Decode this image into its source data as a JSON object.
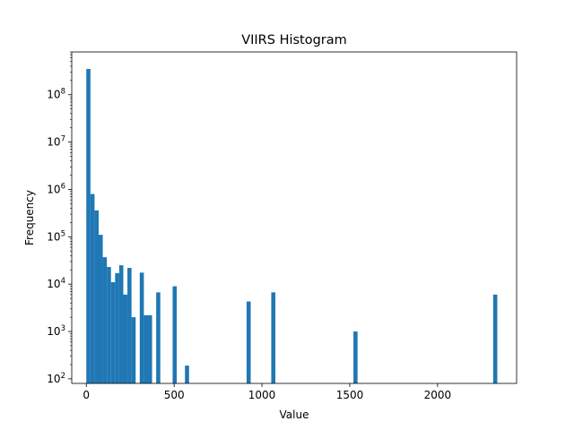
{
  "chart_data": {
    "type": "bar",
    "title": "VIIRS Histogram",
    "xlabel": "Value",
    "ylabel": "Frequency",
    "xlim": [
      -83,
      2450
    ],
    "ylim": [
      80,
      800000000
    ],
    "yscale": "log",
    "grid": false,
    "bar_color": "#1f77b4",
    "x_ticks": [
      {
        "value": 0,
        "label": "0"
      },
      {
        "value": 500,
        "label": "500"
      },
      {
        "value": 1000,
        "label": "1000"
      },
      {
        "value": 1500,
        "label": "1500"
      },
      {
        "value": 2000,
        "label": "2000"
      }
    ],
    "y_ticks": [
      {
        "value": 100,
        "base": "10",
        "exp": "2"
      },
      {
        "value": 1000,
        "base": "10",
        "exp": "3"
      },
      {
        "value": 10000,
        "base": "10",
        "exp": "4"
      },
      {
        "value": 100000,
        "base": "10",
        "exp": "5"
      },
      {
        "value": 1000000,
        "base": "10",
        "exp": "6"
      },
      {
        "value": 10000000,
        "base": "10",
        "exp": "7"
      },
      {
        "value": 100000000,
        "base": "10",
        "exp": "8"
      }
    ],
    "bin_width": 23.4,
    "bins": [
      {
        "x": 0,
        "count": 350000000
      },
      {
        "x": 23.4,
        "count": 800000
      },
      {
        "x": 46.8,
        "count": 360000
      },
      {
        "x": 70.2,
        "count": 110000
      },
      {
        "x": 93.6,
        "count": 37000
      },
      {
        "x": 117.0,
        "count": 23000
      },
      {
        "x": 140.4,
        "count": 11000
      },
      {
        "x": 163.8,
        "count": 17000
      },
      {
        "x": 187.2,
        "count": 25000
      },
      {
        "x": 210.6,
        "count": 6000
      },
      {
        "x": 234.0,
        "count": 22000
      },
      {
        "x": 257.4,
        "count": 2000
      },
      {
        "x": 304.2,
        "count": 17500
      },
      {
        "x": 327.6,
        "count": 2200
      },
      {
        "x": 351.0,
        "count": 2200
      },
      {
        "x": 397.8,
        "count": 6700
      },
      {
        "x": 491.4,
        "count": 9000
      },
      {
        "x": 561.6,
        "count": 190
      },
      {
        "x": 912.6,
        "count": 4300
      },
      {
        "x": 1053.0,
        "count": 6700
      },
      {
        "x": 1521.0,
        "count": 1000
      },
      {
        "x": 2316.6,
        "count": 6000
      }
    ]
  }
}
